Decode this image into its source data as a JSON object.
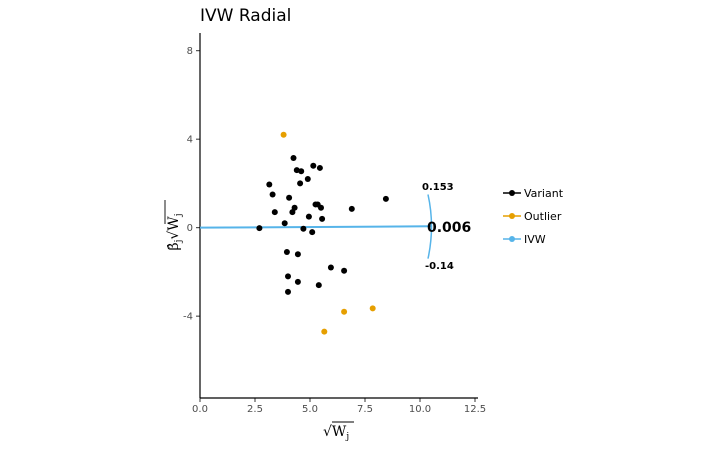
{
  "chart_data": {
    "type": "scatter",
    "title": "IVW Radial",
    "xlabel": "√W_j",
    "ylabel": "β̂_j √W_j",
    "xlim": [
      0,
      12.5
    ],
    "ylim": [
      -7.7,
      8.8
    ],
    "x_ticks": [
      "0.0",
      "2.5",
      "5.0",
      "7.5",
      "10.0",
      "12.5"
    ],
    "y_ticks": [
      "-4",
      "0",
      "4",
      "8"
    ],
    "legend": [
      "Variant",
      "Outlier",
      "IVW"
    ],
    "legend_position": "right",
    "grid": false,
    "colors": {
      "Variant": "#000000",
      "Outlier": "#E69F00",
      "IVW": "#56B4E9"
    },
    "series": [
      {
        "name": "Variant",
        "points": [
          [
            2.7,
            -0.02
          ],
          [
            3.15,
            1.95
          ],
          [
            3.3,
            1.5
          ],
          [
            3.4,
            0.7
          ],
          [
            3.85,
            0.2
          ],
          [
            3.95,
            -1.1
          ],
          [
            4.0,
            -2.2
          ],
          [
            4.0,
            -2.9
          ],
          [
            4.05,
            1.35
          ],
          [
            4.2,
            0.7
          ],
          [
            4.25,
            3.15
          ],
          [
            4.3,
            0.9
          ],
          [
            4.4,
            2.6
          ],
          [
            4.45,
            -1.2
          ],
          [
            4.45,
            -2.45
          ],
          [
            4.55,
            2.0
          ],
          [
            4.6,
            2.55
          ],
          [
            4.7,
            -0.05
          ],
          [
            4.9,
            2.2
          ],
          [
            4.95,
            0.5
          ],
          [
            5.1,
            -0.2
          ],
          [
            5.15,
            2.8
          ],
          [
            5.25,
            1.05
          ],
          [
            5.35,
            1.05
          ],
          [
            5.4,
            -2.6
          ],
          [
            5.45,
            2.7
          ],
          [
            5.5,
            0.9
          ],
          [
            5.55,
            0.4
          ],
          [
            5.95,
            -1.8
          ],
          [
            6.55,
            -1.95
          ],
          [
            6.9,
            0.85
          ],
          [
            8.45,
            1.3
          ]
        ]
      },
      {
        "name": "Outlier",
        "points": [
          [
            3.8,
            4.2
          ],
          [
            5.65,
            -4.7
          ],
          [
            6.55,
            -3.8
          ],
          [
            7.85,
            -3.65
          ]
        ]
      },
      {
        "name": "IVW",
        "slope": 0.006,
        "line_from": [
          0,
          0
        ],
        "line_to": [
          10.5,
          0.063
        ]
      }
    ],
    "annotations": [
      "0.153",
      "0.006",
      "-0.14"
    ]
  }
}
